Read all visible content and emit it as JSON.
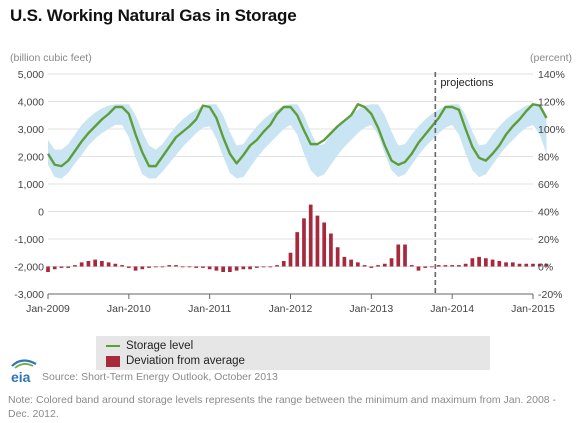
{
  "title": "U.S. Working Natural Gas in Storage",
  "left_unit": "(billion cubic feet)",
  "right_unit": "(percent)",
  "source": "Source: Short-Term Energy Outlook, October 2013",
  "note": "Note: Colored band around storage levels represents the range between the minimum and maximum from Jan. 2008 - Dec. 2012.",
  "logo_text": "eia",
  "colors": {
    "line": "#5e9e3a",
    "band": "#c9e5f3",
    "bar": "#a8293c",
    "projection": "#666666"
  },
  "chart_data": {
    "type": "line",
    "title": "U.S. Working Natural Gas in Storage",
    "ylabel_left": "(billion cubic feet)",
    "ylabel_right": "(percent)",
    "ylim_left": [
      -3000,
      5000
    ],
    "ylim_right": [
      -20,
      140
    ],
    "y_ticks_left": [
      "5,000",
      "4,000",
      "3,000",
      "2,000",
      "1,000",
      "0",
      "-1,000",
      "-2,000",
      "-3,000"
    ],
    "y_ticks_right": [
      "140%",
      "120%",
      "100%",
      "80%",
      "60%",
      "40%",
      "20%",
      "0%",
      "-20%"
    ],
    "x_ticks": [
      "Jan-2009",
      "Jan-2010",
      "Jan-2011",
      "Jan-2012",
      "Jan-2013",
      "Jan-2014",
      "Jan-2015"
    ],
    "x_start": "Jan-2009",
    "projection_start": "Oct-2013",
    "projection_label": "projections",
    "legend": [
      {
        "label": "Storage level"
      },
      {
        "label": "Deviation from average"
      }
    ],
    "storage_level_bcf": [
      2100,
      1700,
      1650,
      1850,
      2200,
      2550,
      2850,
      3100,
      3350,
      3550,
      3800,
      3800,
      3550,
      2800,
      2150,
      1650,
      1650,
      2000,
      2350,
      2700,
      2900,
      3100,
      3350,
      3850,
      3800,
      3400,
      2700,
      2100,
      1750,
      2050,
      2400,
      2600,
      2900,
      3150,
      3550,
      3800,
      3800,
      3500,
      2950,
      2450,
      2450,
      2600,
      2850,
      3100,
      3300,
      3500,
      3900,
      3800,
      3550,
      3050,
      2400,
      1850,
      1700,
      1800,
      2100,
      2500,
      2800,
      3100,
      3400,
      3800,
      3800,
      3700,
      3000,
      2350,
      1950,
      1850,
      2100,
      2400,
      2800,
      3100,
      3350,
      3650,
      3900,
      3850,
      3400
    ],
    "band_max_bcf": [
      2600,
      2250,
      2250,
      2450,
      2800,
      3150,
      3400,
      3600,
      3750,
      3850,
      3900,
      3900,
      3900,
      3500,
      2900,
      2400,
      2250,
      2450,
      2800,
      3100,
      3350,
      3550,
      3700,
      3850,
      3900,
      3900,
      3500,
      2900,
      2400,
      2450,
      2800,
      3100,
      3350,
      3550,
      3700,
      3850,
      3900,
      3900,
      3500,
      2900,
      2400,
      2450,
      2800,
      3100,
      3350,
      3550,
      3700,
      3850,
      3900,
      3900,
      3500,
      2900,
      2400,
      2450,
      2800,
      3100,
      3350,
      3550,
      3700,
      3850,
      3900,
      3900,
      3500,
      2900,
      2400,
      2450,
      2800,
      3100,
      3350,
      3550,
      3700,
      3850,
      3900,
      3900,
      3500
    ],
    "band_min_bcf": [
      1700,
      1250,
      1200,
      1400,
      1750,
      2050,
      2400,
      2650,
      2850,
      3000,
      3150,
      3150,
      2700,
      1950,
      1350,
      1200,
      1200,
      1450,
      1750,
      2050,
      2350,
      2600,
      2850,
      3050,
      3100,
      2650,
      2000,
      1400,
      1200,
      1250,
      1600,
      1950,
      2250,
      2500,
      2750,
      3000,
      3150,
      2800,
      2100,
      1500,
      1250,
      1350,
      1700,
      2050,
      2350,
      2600,
      2850,
      3050,
      3150,
      2800,
      2100,
      1500,
      1250,
      1350,
      1700,
      2050,
      2350,
      2600,
      2850,
      3050,
      3150,
      2800,
      2100,
      1500,
      1250,
      1350,
      1700,
      2050,
      2350,
      2600,
      2850,
      3050,
      3150,
      2800,
      2100
    ],
    "deviation_percent": [
      -4,
      -2,
      -1,
      -1,
      1,
      3,
      4,
      5,
      4,
      3,
      2,
      1,
      -1,
      -3,
      -2,
      -1,
      0,
      0,
      1,
      1,
      0,
      0,
      -1,
      -1,
      -2,
      -3,
      -4,
      -4,
      -3,
      -2,
      -2,
      -1,
      0,
      0,
      1,
      4,
      10,
      25,
      35,
      45,
      37,
      32,
      24,
      14,
      7,
      5,
      3,
      1,
      -1,
      1,
      2,
      6,
      16,
      16,
      1,
      -3,
      -1,
      0,
      1,
      1,
      1,
      1,
      2,
      6,
      7,
      6,
      5,
      4,
      3,
      3,
      2,
      2,
      2,
      2,
      2
    ]
  }
}
